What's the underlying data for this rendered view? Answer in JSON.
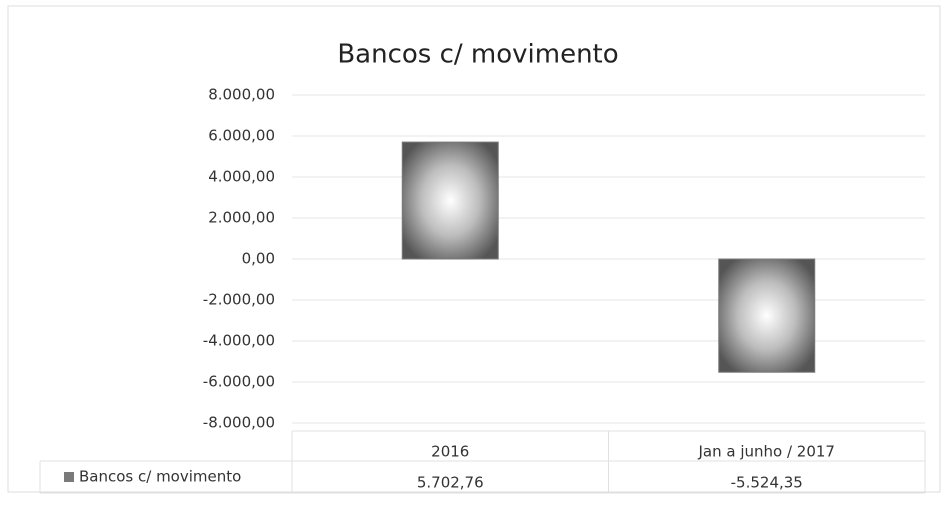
{
  "chart_data": {
    "type": "bar",
    "title": "Bancos c/ movimento",
    "categories": [
      "2016",
      "Jan a junho / 2017"
    ],
    "series": [
      {
        "name": "Bancos c/ movimento",
        "color": "#7a7a7a",
        "values": [
          5702.76,
          -5524.35
        ],
        "value_labels": [
          "5.702,76",
          "-5.524,35"
        ]
      }
    ],
    "ylim": [
      -8000,
      8000
    ],
    "yticks": [
      {
        "value": -8000,
        "label": "-8.000,00"
      },
      {
        "value": -6000,
        "label": "-6.000,00"
      },
      {
        "value": -4000,
        "label": "-4.000,00"
      },
      {
        "value": -2000,
        "label": "-2.000,00"
      },
      {
        "value": 0,
        "label": "0,00"
      },
      {
        "value": 2000,
        "label": "2.000,00"
      },
      {
        "value": 4000,
        "label": "4.000,00"
      },
      {
        "value": 6000,
        "label": "6.000,00"
      },
      {
        "value": 8000,
        "label": "8.000,00"
      }
    ],
    "grid": true
  }
}
